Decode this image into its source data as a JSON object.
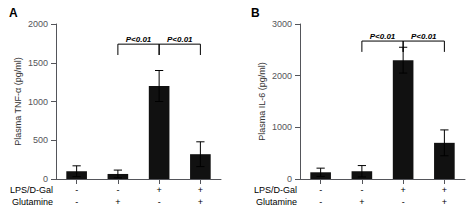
{
  "chart_data": [
    {
      "type": "bar",
      "title": "A",
      "ylabel": "Plasma TNF-α (pg/ml)",
      "categories": [
        null,
        null,
        null,
        null
      ],
      "values": [
        100,
        65,
        1200,
        320
      ],
      "errors": [
        70,
        50,
        200,
        160
      ],
      "color": "#111111",
      "ylim": [
        0,
        2000
      ],
      "yticks": [
        0,
        500,
        1000,
        1500,
        2000
      ],
      "grid": false,
      "x_label_rows": [
        {
          "label": "LPS/D-Gal",
          "values": [
            "-",
            "-",
            "+",
            "+"
          ]
        },
        {
          "label": "Glutamine",
          "values": [
            "-",
            "+",
            "-",
            "+"
          ]
        }
      ],
      "annotations": [
        {
          "x1": 2,
          "x2": 3,
          "y": 1600,
          "label": "P<0.01"
        },
        {
          "x1": 3,
          "x2": 4,
          "y": 1600,
          "label": "P<0.01"
        }
      ]
    },
    {
      "type": "bar",
      "title": "B",
      "ylabel": "Plasma IL-6 (pg/ml)",
      "categories": [
        null,
        null,
        null,
        null
      ],
      "values": [
        130,
        150,
        2300,
        700
      ],
      "errors": [
        80,
        110,
        250,
        250
      ],
      "color": "#111111",
      "ylim": [
        0,
        3000
      ],
      "yticks": [
        0,
        1000,
        2000,
        3000
      ],
      "grid": false,
      "x_label_rows": [
        {
          "label": "LPS/D-Gal",
          "values": [
            "-",
            "-",
            "+",
            "+"
          ]
        },
        {
          "label": "Glutamine",
          "values": [
            "-",
            "+",
            "-",
            "+"
          ]
        }
      ],
      "annotations": [
        {
          "x1": 2,
          "x2": 3,
          "y": 2460,
          "label": "P<0.01"
        },
        {
          "x1": 3,
          "x2": 4,
          "y": 2460,
          "label": "P<0.01"
        }
      ]
    }
  ]
}
